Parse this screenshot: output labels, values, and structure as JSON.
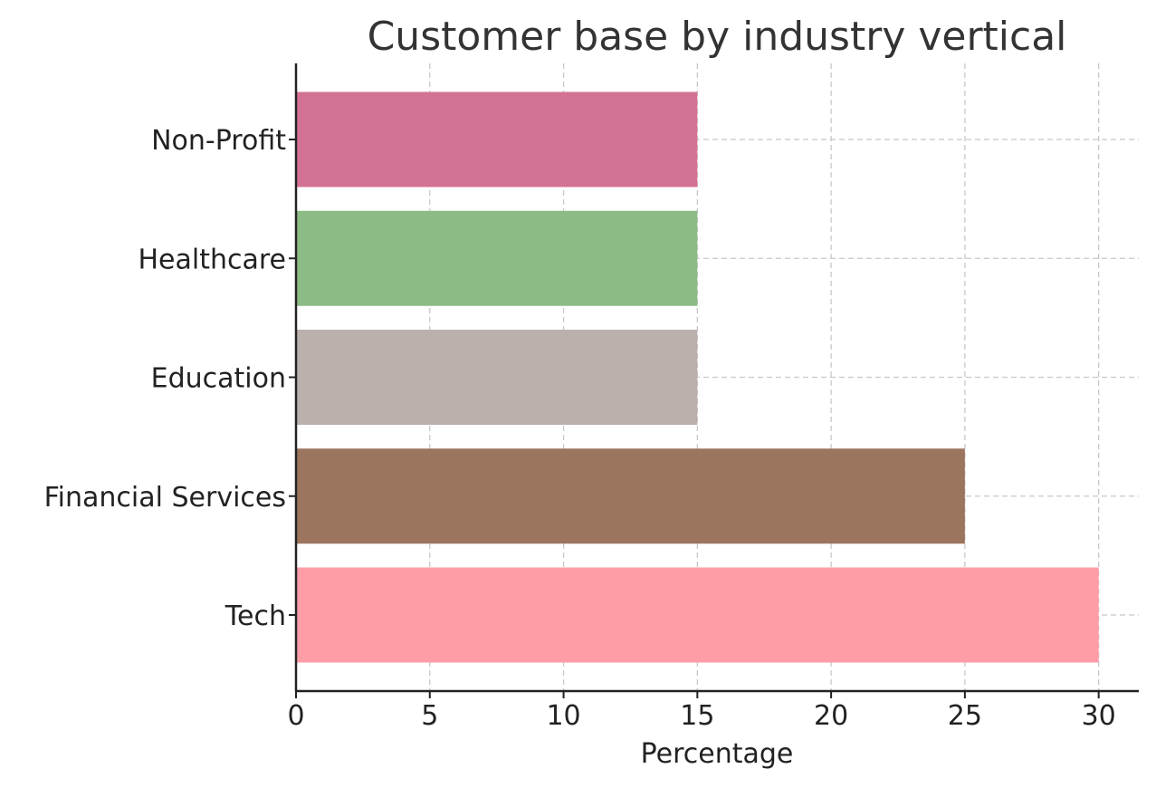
{
  "chart_data": {
    "type": "bar",
    "orientation": "horizontal",
    "title": "Customer base by industry vertical",
    "xlabel": "Percentage",
    "ylabel": "",
    "categories": [
      "Tech",
      "Financial Services",
      "Education",
      "Healthcare",
      "Non-Profit"
    ],
    "values": [
      30,
      25,
      15,
      15,
      15
    ],
    "colors": [
      "#ff9da7",
      "#9c755f",
      "#bab0ac",
      "#8cbb86",
      "#d37295"
    ],
    "xlim": [
      0,
      31.5
    ],
    "xticks": [
      0,
      5,
      10,
      15,
      20,
      25,
      30
    ],
    "grid": true
  }
}
